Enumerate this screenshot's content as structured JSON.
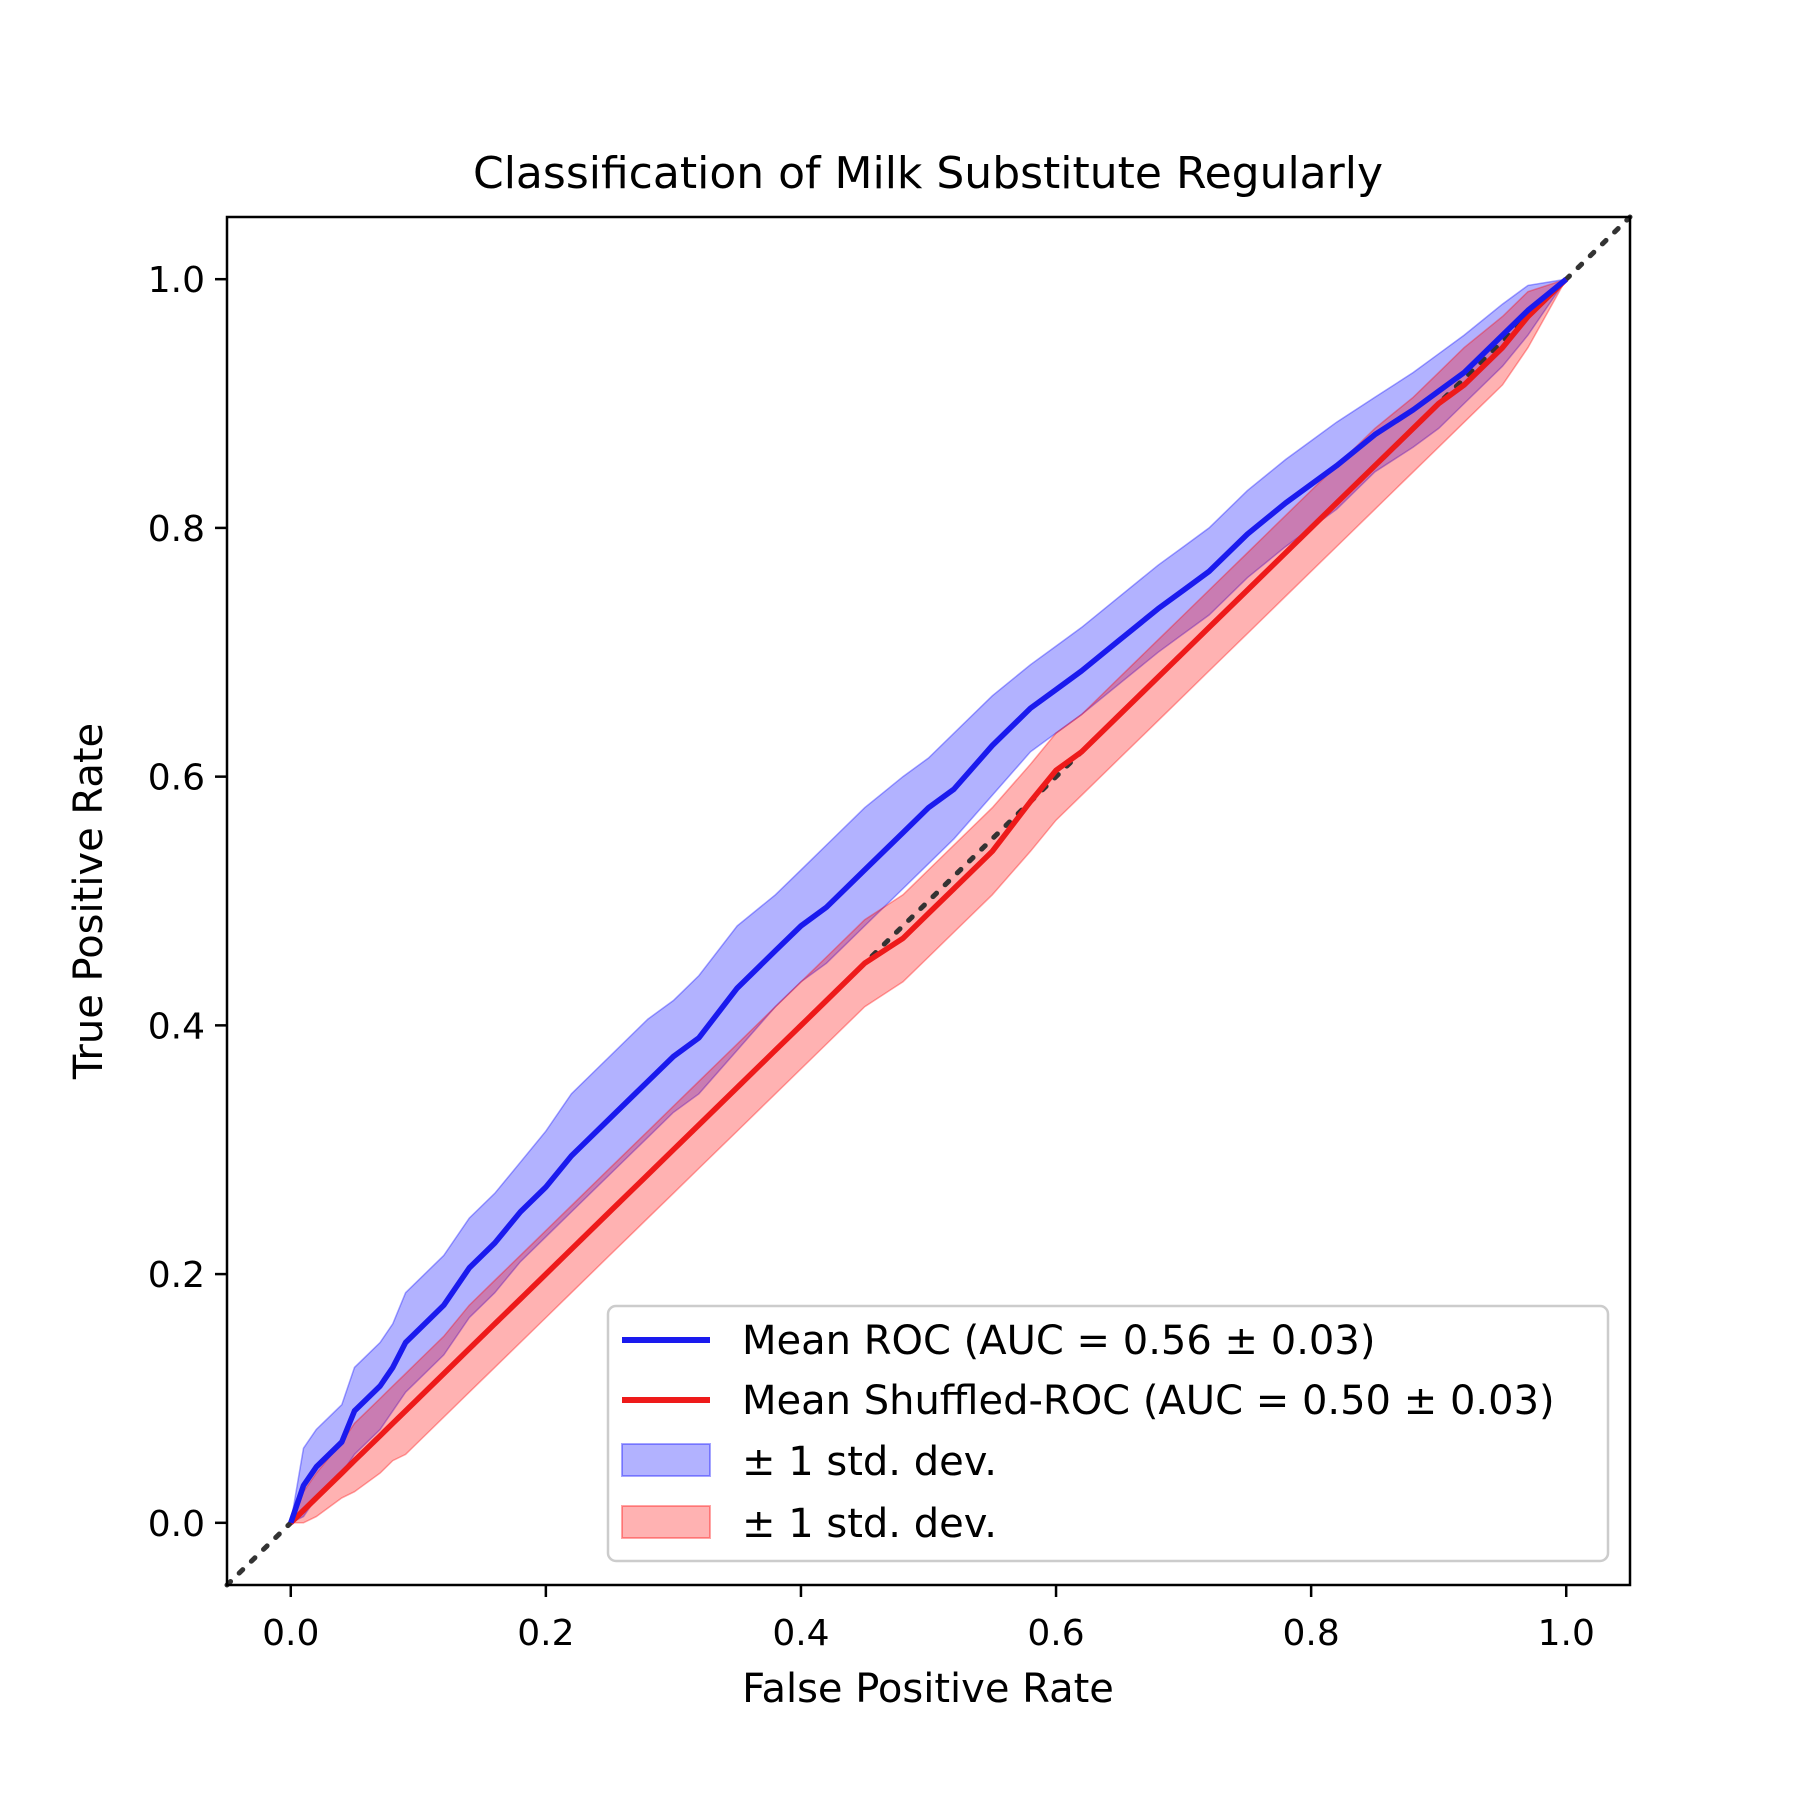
{
  "chart_data": {
    "type": "line",
    "title": "Classification of Milk Substitute Regularly",
    "xlabel": "False Positive Rate",
    "ylabel": "True Positive Rate",
    "xlim": [
      -0.05,
      1.05
    ],
    "ylim": [
      -0.05,
      1.05
    ],
    "xticks": [
      "0.0",
      "0.2",
      "0.4",
      "0.6",
      "0.8",
      "1.0"
    ],
    "yticks": [
      "0.0",
      "0.2",
      "0.4",
      "0.6",
      "0.8",
      "1.0"
    ],
    "grid": false,
    "legend_position": "lower-right",
    "x": [
      0.0,
      0.01,
      0.02,
      0.04,
      0.05,
      0.07,
      0.08,
      0.09,
      0.1,
      0.12,
      0.14,
      0.16,
      0.18,
      0.2,
      0.22,
      0.25,
      0.28,
      0.3,
      0.32,
      0.35,
      0.38,
      0.4,
      0.42,
      0.45,
      0.48,
      0.5,
      0.52,
      0.55,
      0.58,
      0.6,
      0.62,
      0.65,
      0.68,
      0.7,
      0.72,
      0.75,
      0.78,
      0.8,
      0.82,
      0.85,
      0.88,
      0.9,
      0.92,
      0.95,
      0.97,
      1.0
    ],
    "series": [
      {
        "name": "Mean ROC (AUC = 0.56 ± 0.03)",
        "color": "#1a1aee",
        "values": [
          0.0,
          0.03,
          0.045,
          0.065,
          0.09,
          0.11,
          0.125,
          0.145,
          0.155,
          0.175,
          0.205,
          0.225,
          0.25,
          0.27,
          0.295,
          0.325,
          0.355,
          0.375,
          0.39,
          0.43,
          0.46,
          0.48,
          0.495,
          0.525,
          0.555,
          0.575,
          0.59,
          0.625,
          0.655,
          0.67,
          0.685,
          0.71,
          0.735,
          0.75,
          0.765,
          0.795,
          0.82,
          0.835,
          0.85,
          0.875,
          0.895,
          0.91,
          0.925,
          0.955,
          0.975,
          1.0
        ]
      },
      {
        "name": "Mean Shuffled-ROC (AUC = 0.50 ± 0.03)",
        "color": "#ee1a1a",
        "values": [
          0.0,
          0.01,
          0.02,
          0.04,
          0.05,
          0.07,
          0.08,
          0.09,
          0.1,
          0.12,
          0.14,
          0.16,
          0.18,
          0.2,
          0.22,
          0.25,
          0.28,
          0.3,
          0.32,
          0.35,
          0.38,
          0.4,
          0.42,
          0.45,
          0.47,
          0.49,
          0.51,
          0.54,
          0.58,
          0.605,
          0.62,
          0.65,
          0.68,
          0.7,
          0.72,
          0.75,
          0.78,
          0.8,
          0.82,
          0.85,
          0.88,
          0.9,
          0.915,
          0.945,
          0.97,
          1.0
        ]
      }
    ],
    "bands": [
      {
        "name": "± 1 std. dev.",
        "color": "#0000ff",
        "opacity": 0.3,
        "upper": [
          0.0,
          0.06,
          0.075,
          0.095,
          0.125,
          0.145,
          0.16,
          0.185,
          0.195,
          0.215,
          0.245,
          0.265,
          0.29,
          0.315,
          0.345,
          0.375,
          0.405,
          0.42,
          0.44,
          0.48,
          0.505,
          0.525,
          0.545,
          0.575,
          0.6,
          0.615,
          0.635,
          0.665,
          0.69,
          0.705,
          0.72,
          0.745,
          0.77,
          0.785,
          0.8,
          0.83,
          0.855,
          0.87,
          0.885,
          0.905,
          0.925,
          0.94,
          0.955,
          0.98,
          0.995,
          1.0
        ],
        "lower": [
          0.0,
          0.005,
          0.02,
          0.04,
          0.055,
          0.075,
          0.09,
          0.105,
          0.115,
          0.135,
          0.165,
          0.185,
          0.21,
          0.23,
          0.25,
          0.28,
          0.31,
          0.33,
          0.345,
          0.38,
          0.415,
          0.435,
          0.45,
          0.48,
          0.51,
          0.53,
          0.55,
          0.585,
          0.62,
          0.635,
          0.65,
          0.675,
          0.7,
          0.715,
          0.73,
          0.76,
          0.785,
          0.8,
          0.815,
          0.845,
          0.865,
          0.88,
          0.9,
          0.93,
          0.955,
          1.0
        ]
      },
      {
        "name": "± 1 std. dev.",
        "color": "#ff0000",
        "opacity": 0.3,
        "upper": [
          0.0,
          0.025,
          0.04,
          0.065,
          0.08,
          0.1,
          0.11,
          0.12,
          0.13,
          0.15,
          0.175,
          0.195,
          0.215,
          0.235,
          0.255,
          0.285,
          0.315,
          0.335,
          0.355,
          0.385,
          0.415,
          0.435,
          0.455,
          0.485,
          0.505,
          0.525,
          0.545,
          0.575,
          0.61,
          0.635,
          0.65,
          0.68,
          0.71,
          0.73,
          0.75,
          0.78,
          0.81,
          0.83,
          0.85,
          0.88,
          0.905,
          0.925,
          0.945,
          0.97,
          0.99,
          1.0
        ],
        "lower": [
          0.0,
          0.0,
          0.005,
          0.02,
          0.025,
          0.04,
          0.05,
          0.055,
          0.065,
          0.085,
          0.105,
          0.125,
          0.145,
          0.165,
          0.185,
          0.215,
          0.245,
          0.265,
          0.285,
          0.315,
          0.345,
          0.365,
          0.385,
          0.415,
          0.435,
          0.455,
          0.475,
          0.505,
          0.54,
          0.565,
          0.585,
          0.615,
          0.645,
          0.665,
          0.685,
          0.715,
          0.745,
          0.765,
          0.785,
          0.815,
          0.845,
          0.865,
          0.885,
          0.915,
          0.945,
          1.0
        ]
      }
    ],
    "reference_line": {
      "style": "dotted",
      "color": "#333333",
      "x": [
        -0.05,
        1.05
      ],
      "y": [
        -0.05,
        1.05
      ]
    }
  }
}
